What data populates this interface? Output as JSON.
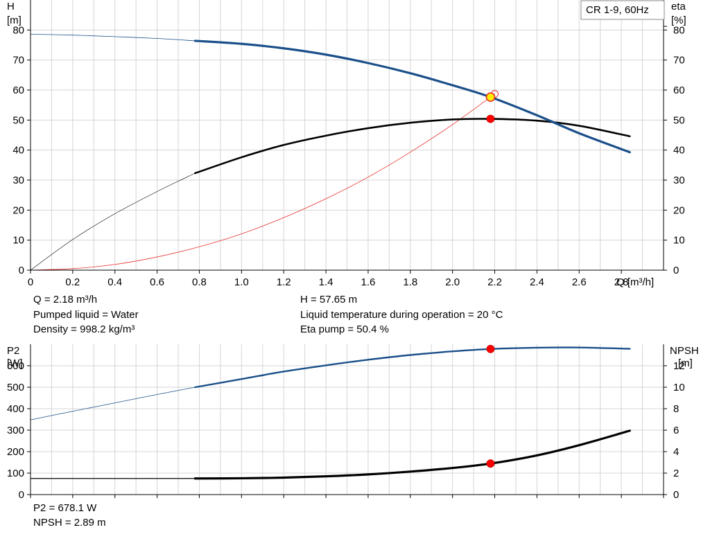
{
  "legend": "CR 1-9, 60Hz",
  "chart_data": [
    {
      "type": "line",
      "xlabel": "Q [m³/h]",
      "ylabel_left": [
        "H",
        "[m]"
      ],
      "ylabel_right": [
        "eta",
        "[%]"
      ],
      "xlim": [
        0,
        3.0
      ],
      "ylim_left": [
        0,
        90
      ],
      "ylim_right": [
        0,
        90
      ],
      "x_ticks": [
        "0",
        "0.2",
        "0.4",
        "0.6",
        "0.8",
        "1.0",
        "1.2",
        "1.4",
        "1.6",
        "1.8",
        "2.0",
        "2.2",
        "2.4",
        "2.6",
        "2.8"
      ],
      "y_ticks": [
        "0",
        "10",
        "20",
        "30",
        "40",
        "50",
        "60",
        "70",
        "80"
      ],
      "grid": true,
      "series": [
        {
          "key": "head",
          "color": "#1a4f8a",
          "axis": "left",
          "points": [
            [
              0,
              78.6
            ],
            [
              0.2,
              78.3
            ],
            [
              0.4,
              77.8
            ],
            [
              0.6,
              77.2
            ],
            [
              0.78,
              76.4
            ],
            [
              1.0,
              75.4
            ],
            [
              1.2,
              73.9
            ],
            [
              1.4,
              71.8
            ],
            [
              1.6,
              69.0
            ],
            [
              1.8,
              65.6
            ],
            [
              2.0,
              61.6
            ],
            [
              2.18,
              57.65
            ],
            [
              2.4,
              51.6
            ],
            [
              2.6,
              45.6
            ],
            [
              2.84,
              39.3
            ]
          ]
        },
        {
          "key": "efficiency",
          "color": "#000000",
          "axis": "right",
          "points": [
            [
              0,
              0
            ],
            [
              0.2,
              10.2
            ],
            [
              0.4,
              18.8
            ],
            [
              0.6,
              26.2
            ],
            [
              0.78,
              32.3
            ],
            [
              1.0,
              37.6
            ],
            [
              1.2,
              41.7
            ],
            [
              1.4,
              44.8
            ],
            [
              1.6,
              47.3
            ],
            [
              1.8,
              49.1
            ],
            [
              2.0,
              50.2
            ],
            [
              2.18,
              50.4
            ],
            [
              2.4,
              49.8
            ],
            [
              2.6,
              48.1
            ],
            [
              2.84,
              44.6
            ]
          ]
        },
        {
          "key": "system-curve",
          "color": "#e8302a",
          "axis": "left",
          "points": [
            [
              0,
              0
            ],
            [
              0.2,
              0.5
            ],
            [
              0.4,
              1.9
            ],
            [
              0.6,
              4.4
            ],
            [
              0.8,
              7.8
            ],
            [
              1.0,
              12.1
            ],
            [
              1.2,
              17.5
            ],
            [
              1.4,
              23.8
            ],
            [
              1.6,
              31.0
            ],
            [
              1.8,
              39.3
            ],
            [
              2.0,
              48.5
            ],
            [
              2.2,
              58.7
            ]
          ]
        }
      ],
      "duty_point": {
        "q": 2.18,
        "head": 57.65,
        "eta": 50.4
      }
    },
    {
      "type": "line",
      "xlim": [
        0,
        3.0
      ],
      "ylabel_left": [
        "P2",
        "[W]"
      ],
      "ylabel_right": [
        "NPSH",
        "[m]"
      ],
      "ylim_left": [
        0,
        700
      ],
      "ylim_right": [
        0,
        14
      ],
      "y_ticks_left": [
        "0",
        "100",
        "200",
        "300",
        "400",
        "500",
        "600"
      ],
      "y_ticks_right": [
        "0",
        "2",
        "4",
        "6",
        "8",
        "10",
        "12"
      ],
      "grid": true,
      "series": [
        {
          "key": "power",
          "color": "#1a4f8a",
          "axis": "left",
          "points": [
            [
              0,
              348
            ],
            [
              0.2,
              388
            ],
            [
              0.4,
              427
            ],
            [
              0.6,
              466
            ],
            [
              0.78,
              500
            ],
            [
              1.0,
              538
            ],
            [
              1.2,
              573
            ],
            [
              1.4,
              602
            ],
            [
              1.6,
              628
            ],
            [
              1.8,
              650
            ],
            [
              2.0,
              667
            ],
            [
              2.18,
              678.1
            ],
            [
              2.4,
              684
            ],
            [
              2.6,
              685
            ],
            [
              2.84,
              679
            ]
          ]
        },
        {
          "key": "npsh",
          "color": "#000000",
          "axis": "right",
          "points": [
            [
              0,
              1.5
            ],
            [
              0.4,
              1.5
            ],
            [
              0.78,
              1.5
            ],
            [
              1.0,
              1.52
            ],
            [
              1.2,
              1.58
            ],
            [
              1.4,
              1.7
            ],
            [
              1.6,
              1.88
            ],
            [
              1.8,
              2.14
            ],
            [
              2.0,
              2.48
            ],
            [
              2.18,
              2.89
            ],
            [
              2.4,
              3.65
            ],
            [
              2.6,
              4.6
            ],
            [
              2.84,
              5.95
            ]
          ]
        }
      ],
      "duty_point": {
        "q": 2.18,
        "p2": 678.1,
        "npsh": 2.89
      }
    }
  ],
  "info_top": {
    "q": "Q = 2.18 m³/h",
    "liquid": "Pumped liquid = Water",
    "density": "Density = 998.2 kg/m³",
    "h": "H = 57.65 m",
    "temp": "Liquid temperature during operation = 20 °C",
    "eta": "Eta pump = 50.4 %"
  },
  "info_bottom": {
    "p2": "P2 = 678.1 W",
    "npsh": "NPSH = 2.89 m"
  }
}
